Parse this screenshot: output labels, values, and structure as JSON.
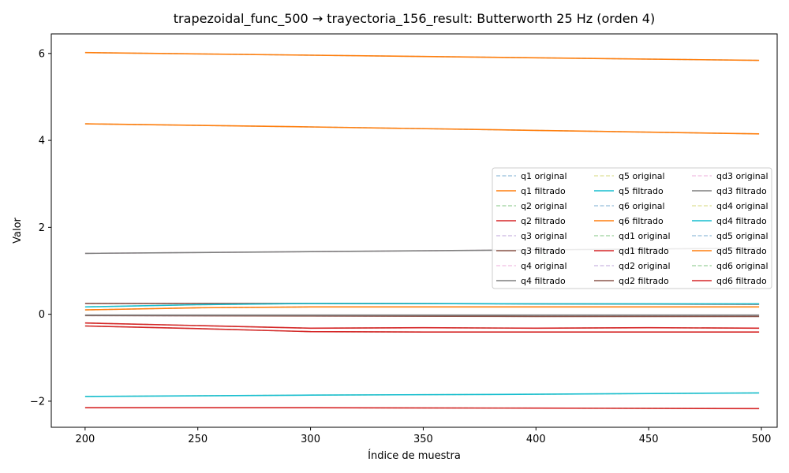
{
  "chart_data": {
    "type": "line",
    "title": "trapezoidal_func_500 → trayectoria_156_result: Butterworth 25 Hz (orden 4)",
    "xlabel": "Índice de muestra",
    "ylabel": "Valor",
    "xlim": [
      185,
      507
    ],
    "ylim": [
      -2.6,
      6.45
    ],
    "xticks": [
      200,
      250,
      300,
      350,
      400,
      450,
      500
    ],
    "yticks": [
      -2,
      0,
      2,
      4,
      6
    ],
    "ytick_labels": [
      "−2",
      "0",
      "2",
      "4",
      "6"
    ],
    "grid": false,
    "legend_placement": "center-right",
    "legend_columns": 3,
    "series": [
      {
        "name": "q1 original",
        "color": "#1f77b4",
        "style": "dashed",
        "alpha": 0.4,
        "x": [
          200,
          300,
          400,
          499
        ],
        "y": [
          6.02,
          5.96,
          5.9,
          5.84
        ]
      },
      {
        "name": "q1 filtrado",
        "color": "#ff7f0e",
        "style": "solid",
        "alpha": 1,
        "x": [
          200,
          300,
          400,
          499
        ],
        "y": [
          6.02,
          5.96,
          5.9,
          5.84
        ]
      },
      {
        "name": "q2 original",
        "color": "#2ca02c",
        "style": "dashed",
        "alpha": 0.4,
        "x": [
          200,
          250,
          300,
          350,
          400,
          450,
          499
        ],
        "y": [
          -0.2,
          -0.26,
          -0.32,
          -0.31,
          -0.32,
          -0.31,
          -0.32
        ]
      },
      {
        "name": "q2 filtrado",
        "color": "#d62728",
        "style": "solid",
        "alpha": 1,
        "x": [
          200,
          250,
          300,
          350,
          400,
          450,
          499
        ],
        "y": [
          -0.2,
          -0.26,
          -0.32,
          -0.31,
          -0.32,
          -0.31,
          -0.32
        ]
      },
      {
        "name": "q3 original",
        "color": "#9467bd",
        "style": "dashed",
        "alpha": 0.4,
        "x": [
          200,
          300,
          400,
          499
        ],
        "y": [
          -0.03,
          -0.04,
          -0.05,
          -0.05
        ]
      },
      {
        "name": "q3 filtrado",
        "color": "#8c564b",
        "style": "solid",
        "alpha": 1,
        "x": [
          200,
          300,
          400,
          499
        ],
        "y": [
          -0.03,
          -0.04,
          -0.05,
          -0.05
        ]
      },
      {
        "name": "q4 original",
        "color": "#e377c2",
        "style": "dashed",
        "alpha": 0.4,
        "x": [
          200,
          300,
          400,
          499
        ],
        "y": [
          1.4,
          1.44,
          1.48,
          1.52
        ]
      },
      {
        "name": "q4 filtrado",
        "color": "#7f7f7f",
        "style": "solid",
        "alpha": 1,
        "x": [
          200,
          300,
          400,
          499
        ],
        "y": [
          1.4,
          1.44,
          1.48,
          1.52
        ]
      },
      {
        "name": "q5 original",
        "color": "#bcbd22",
        "style": "dashed",
        "alpha": 0.4,
        "x": [
          200,
          300,
          400,
          499
        ],
        "y": [
          -1.89,
          -1.86,
          -1.84,
          -1.81
        ]
      },
      {
        "name": "q5 filtrado",
        "color": "#17becf",
        "style": "solid",
        "alpha": 1,
        "x": [
          200,
          300,
          400,
          499
        ],
        "y": [
          -1.89,
          -1.86,
          -1.84,
          -1.81
        ]
      },
      {
        "name": "q6 original",
        "color": "#1f77b4",
        "style": "dashed",
        "alpha": 0.4,
        "x": [
          200,
          300,
          400,
          499
        ],
        "y": [
          4.38,
          4.31,
          4.23,
          4.15
        ]
      },
      {
        "name": "q6 filtrado",
        "color": "#ff7f0e",
        "style": "solid",
        "alpha": 1,
        "x": [
          200,
          300,
          400,
          499
        ],
        "y": [
          4.38,
          4.31,
          4.23,
          4.15
        ]
      },
      {
        "name": "qd1 original",
        "color": "#2ca02c",
        "style": "dashed",
        "alpha": 0.4,
        "x": [
          200,
          250,
          300,
          350,
          400,
          450,
          499
        ],
        "y": [
          -0.27,
          -0.33,
          -0.4,
          -0.41,
          -0.41,
          -0.41,
          -0.41
        ]
      },
      {
        "name": "qd1 filtrado",
        "color": "#d62728",
        "style": "solid",
        "alpha": 1,
        "x": [
          200,
          250,
          300,
          350,
          400,
          450,
          499
        ],
        "y": [
          -0.27,
          -0.33,
          -0.4,
          -0.41,
          -0.41,
          -0.41,
          -0.41
        ]
      },
      {
        "name": "qd2 original",
        "color": "#9467bd",
        "style": "dashed",
        "alpha": 0.4,
        "x": [
          200,
          300,
          400,
          499
        ],
        "y": [
          0.25,
          0.25,
          0.24,
          0.23
        ]
      },
      {
        "name": "qd2 filtrado",
        "color": "#8c564b",
        "style": "solid",
        "alpha": 1,
        "x": [
          200,
          300,
          400,
          499
        ],
        "y": [
          0.25,
          0.25,
          0.24,
          0.23
        ]
      },
      {
        "name": "qd3 original",
        "color": "#e377c2",
        "style": "dashed",
        "alpha": 0.4,
        "x": [
          200,
          300,
          400,
          499
        ],
        "y": [
          -0.02,
          -0.02,
          -0.02,
          -0.02
        ]
      },
      {
        "name": "qd3 filtrado",
        "color": "#7f7f7f",
        "style": "solid",
        "alpha": 1,
        "x": [
          200,
          300,
          400,
          499
        ],
        "y": [
          -0.02,
          -0.02,
          -0.02,
          -0.02
        ]
      },
      {
        "name": "qd4 original",
        "color": "#bcbd22",
        "style": "dashed",
        "alpha": 0.4,
        "x": [
          200,
          250,
          300,
          400,
          499
        ],
        "y": [
          0.17,
          0.22,
          0.25,
          0.24,
          0.24
        ]
      },
      {
        "name": "qd4 filtrado",
        "color": "#17becf",
        "style": "solid",
        "alpha": 1,
        "x": [
          200,
          250,
          300,
          400,
          499
        ],
        "y": [
          0.17,
          0.22,
          0.25,
          0.24,
          0.24
        ]
      },
      {
        "name": "qd5 original",
        "color": "#1f77b4",
        "style": "dashed",
        "alpha": 0.4,
        "x": [
          200,
          250,
          300,
          400,
          499
        ],
        "y": [
          0.1,
          0.15,
          0.17,
          0.17,
          0.17
        ]
      },
      {
        "name": "qd5 filtrado",
        "color": "#ff7f0e",
        "style": "solid",
        "alpha": 1,
        "x": [
          200,
          250,
          300,
          400,
          499
        ],
        "y": [
          0.1,
          0.15,
          0.17,
          0.17,
          0.17
        ]
      },
      {
        "name": "qd6 original",
        "color": "#2ca02c",
        "style": "dashed",
        "alpha": 0.4,
        "x": [
          200,
          300,
          400,
          499
        ],
        "y": [
          -2.15,
          -2.15,
          -2.16,
          -2.17
        ]
      },
      {
        "name": "qd6 filtrado",
        "color": "#d62728",
        "style": "solid",
        "alpha": 1,
        "x": [
          200,
          300,
          400,
          499
        ],
        "y": [
          -2.15,
          -2.15,
          -2.16,
          -2.17
        ]
      }
    ]
  }
}
